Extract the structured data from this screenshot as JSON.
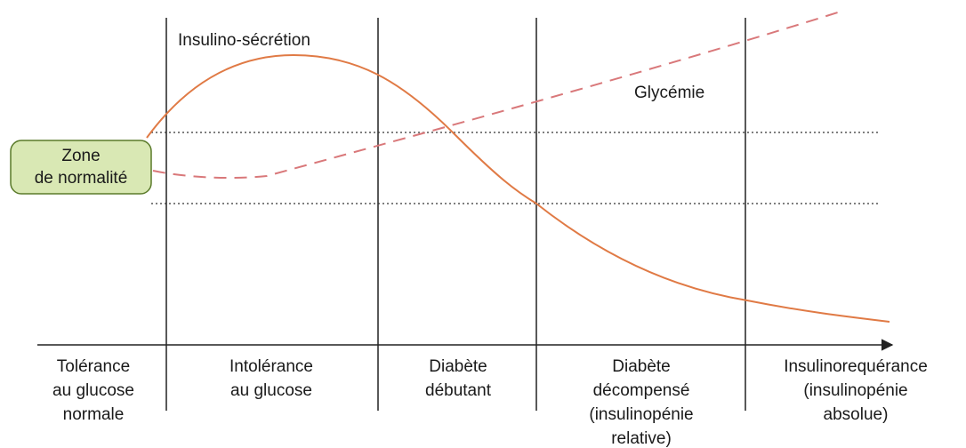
{
  "curves": {
    "secretion_label": "Insulino-sécrétion",
    "glycemia_label": "Glycémie"
  },
  "zone": {
    "lines": [
      "Zone",
      "de normalité"
    ]
  },
  "stages": [
    {
      "lines": [
        "Tolérance",
        "au glucose",
        "normale"
      ]
    },
    {
      "lines": [
        "Intolérance",
        "au glucose"
      ]
    },
    {
      "lines": [
        "Diabète",
        "débutant"
      ]
    },
    {
      "lines": [
        "Diabète",
        "décompensé",
        "(insulinopénie",
        "relative)"
      ]
    },
    {
      "lines": [
        "Insulinorequérance",
        "(insulinopénie",
        "absolue)"
      ]
    }
  ]
}
